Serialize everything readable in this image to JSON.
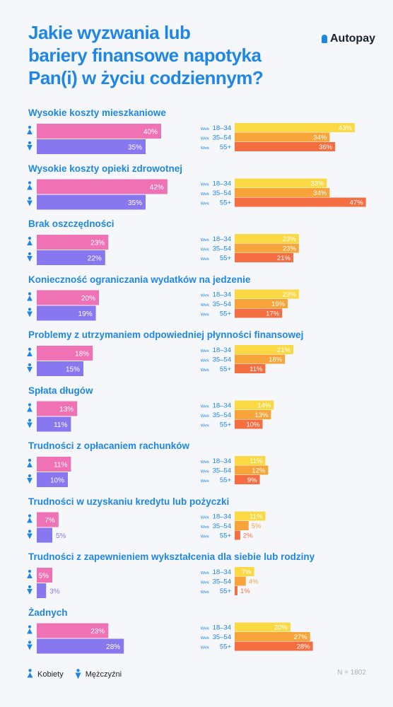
{
  "title_lines": [
    "Jakie wyzwania lub",
    "bariery finansowe napotyka",
    "Pan(i) w życiu codziennym?"
  ],
  "brand": "Autopay",
  "footnote": "N = 1802",
  "legend": {
    "women": "Kobiety",
    "men": "Mężczyźni"
  },
  "age_prefix": "Wiek",
  "colors": {
    "title": "#1e87e6",
    "women": "#ee72b4",
    "men": "#8878f0",
    "age_18_34": "#fbd945",
    "age_35_54": "#f7a53a",
    "age_55_plus": "#f46e42"
  },
  "icons": {
    "women": "woman-icon",
    "men": "man-icon",
    "brand": "autopay-logo-icon"
  },
  "chart_data": {
    "type": "bar",
    "unit": "%",
    "gender_series": [
      "Kobiety",
      "Mężczyźni"
    ],
    "age_series": [
      "18–34",
      "35–54",
      "55+"
    ],
    "categories": [
      {
        "label": "Wysokie koszty mieszkaniowe",
        "women": 40,
        "men": 35,
        "age": [
          43,
          34,
          36
        ]
      },
      {
        "label": "Wysokie koszty opieki zdrowotnej",
        "women": 42,
        "men": 35,
        "age": [
          33,
          34,
          47
        ]
      },
      {
        "label": "Brak oszczędności",
        "women": 23,
        "men": 22,
        "age": [
          23,
          23,
          21
        ]
      },
      {
        "label": "Konieczność ograniczania wydatków na jedzenie",
        "women": 20,
        "men": 19,
        "age": [
          23,
          19,
          17
        ]
      },
      {
        "label": "Problemy z utrzymaniem odpowiedniej płynności finansowej",
        "women": 18,
        "men": 15,
        "age": [
          21,
          18,
          11
        ]
      },
      {
        "label": "Spłata długów",
        "women": 13,
        "men": 11,
        "age": [
          14,
          13,
          10
        ]
      },
      {
        "label": "Trudności z opłacaniem rachunków",
        "women": 11,
        "men": 10,
        "age": [
          11,
          12,
          9
        ]
      },
      {
        "label": "Trudności w uzyskaniu kredytu lub pożyczki",
        "women": 7,
        "men": 5,
        "age": [
          11,
          5,
          2
        ]
      },
      {
        "label": "Trudności z zapewnieniem wykształcenia dla siebie lub rodziny",
        "women": 5,
        "men": 3,
        "age": [
          7,
          4,
          1
        ]
      },
      {
        "label": "Żadnych",
        "women": 23,
        "men": 28,
        "age": [
          20,
          27,
          28
        ]
      }
    ]
  }
}
